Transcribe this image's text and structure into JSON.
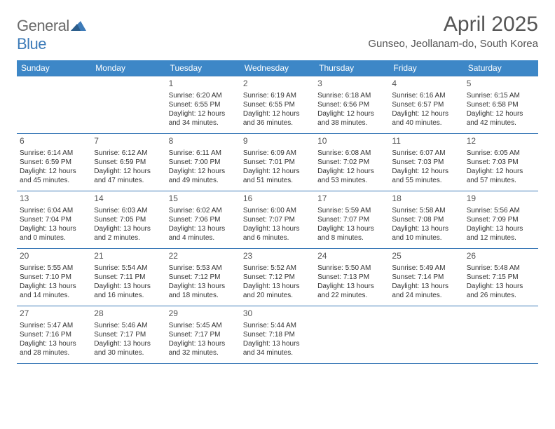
{
  "brand": {
    "part1": "General",
    "part2": "Blue"
  },
  "title": "April 2025",
  "location": "Gunseo, Jeollanam-do, South Korea",
  "colors": {
    "header_bg": "#3d87c7",
    "header_text": "#ffffff",
    "border": "#3d7bb8",
    "body_text": "#333333",
    "title_text": "#555555",
    "logo_gray": "#6b6b6b",
    "logo_blue": "#3d7bb8"
  },
  "typography": {
    "month_title_pt": 30,
    "location_pt": 15,
    "dayheader_pt": 12,
    "daynum_pt": 12,
    "cell_pt": 10
  },
  "day_headers": [
    "Sunday",
    "Monday",
    "Tuesday",
    "Wednesday",
    "Thursday",
    "Friday",
    "Saturday"
  ],
  "weeks": [
    [
      null,
      null,
      {
        "n": "1",
        "sr": "Sunrise: 6:20 AM",
        "ss": "Sunset: 6:55 PM",
        "d1": "Daylight: 12 hours",
        "d2": "and 34 minutes."
      },
      {
        "n": "2",
        "sr": "Sunrise: 6:19 AM",
        "ss": "Sunset: 6:55 PM",
        "d1": "Daylight: 12 hours",
        "d2": "and 36 minutes."
      },
      {
        "n": "3",
        "sr": "Sunrise: 6:18 AM",
        "ss": "Sunset: 6:56 PM",
        "d1": "Daylight: 12 hours",
        "d2": "and 38 minutes."
      },
      {
        "n": "4",
        "sr": "Sunrise: 6:16 AM",
        "ss": "Sunset: 6:57 PM",
        "d1": "Daylight: 12 hours",
        "d2": "and 40 minutes."
      },
      {
        "n": "5",
        "sr": "Sunrise: 6:15 AM",
        "ss": "Sunset: 6:58 PM",
        "d1": "Daylight: 12 hours",
        "d2": "and 42 minutes."
      }
    ],
    [
      {
        "n": "6",
        "sr": "Sunrise: 6:14 AM",
        "ss": "Sunset: 6:59 PM",
        "d1": "Daylight: 12 hours",
        "d2": "and 45 minutes."
      },
      {
        "n": "7",
        "sr": "Sunrise: 6:12 AM",
        "ss": "Sunset: 6:59 PM",
        "d1": "Daylight: 12 hours",
        "d2": "and 47 minutes."
      },
      {
        "n": "8",
        "sr": "Sunrise: 6:11 AM",
        "ss": "Sunset: 7:00 PM",
        "d1": "Daylight: 12 hours",
        "d2": "and 49 minutes."
      },
      {
        "n": "9",
        "sr": "Sunrise: 6:09 AM",
        "ss": "Sunset: 7:01 PM",
        "d1": "Daylight: 12 hours",
        "d2": "and 51 minutes."
      },
      {
        "n": "10",
        "sr": "Sunrise: 6:08 AM",
        "ss": "Sunset: 7:02 PM",
        "d1": "Daylight: 12 hours",
        "d2": "and 53 minutes."
      },
      {
        "n": "11",
        "sr": "Sunrise: 6:07 AM",
        "ss": "Sunset: 7:03 PM",
        "d1": "Daylight: 12 hours",
        "d2": "and 55 minutes."
      },
      {
        "n": "12",
        "sr": "Sunrise: 6:05 AM",
        "ss": "Sunset: 7:03 PM",
        "d1": "Daylight: 12 hours",
        "d2": "and 57 minutes."
      }
    ],
    [
      {
        "n": "13",
        "sr": "Sunrise: 6:04 AM",
        "ss": "Sunset: 7:04 PM",
        "d1": "Daylight: 13 hours",
        "d2": "and 0 minutes."
      },
      {
        "n": "14",
        "sr": "Sunrise: 6:03 AM",
        "ss": "Sunset: 7:05 PM",
        "d1": "Daylight: 13 hours",
        "d2": "and 2 minutes."
      },
      {
        "n": "15",
        "sr": "Sunrise: 6:02 AM",
        "ss": "Sunset: 7:06 PM",
        "d1": "Daylight: 13 hours",
        "d2": "and 4 minutes."
      },
      {
        "n": "16",
        "sr": "Sunrise: 6:00 AM",
        "ss": "Sunset: 7:07 PM",
        "d1": "Daylight: 13 hours",
        "d2": "and 6 minutes."
      },
      {
        "n": "17",
        "sr": "Sunrise: 5:59 AM",
        "ss": "Sunset: 7:07 PM",
        "d1": "Daylight: 13 hours",
        "d2": "and 8 minutes."
      },
      {
        "n": "18",
        "sr": "Sunrise: 5:58 AM",
        "ss": "Sunset: 7:08 PM",
        "d1": "Daylight: 13 hours",
        "d2": "and 10 minutes."
      },
      {
        "n": "19",
        "sr": "Sunrise: 5:56 AM",
        "ss": "Sunset: 7:09 PM",
        "d1": "Daylight: 13 hours",
        "d2": "and 12 minutes."
      }
    ],
    [
      {
        "n": "20",
        "sr": "Sunrise: 5:55 AM",
        "ss": "Sunset: 7:10 PM",
        "d1": "Daylight: 13 hours",
        "d2": "and 14 minutes."
      },
      {
        "n": "21",
        "sr": "Sunrise: 5:54 AM",
        "ss": "Sunset: 7:11 PM",
        "d1": "Daylight: 13 hours",
        "d2": "and 16 minutes."
      },
      {
        "n": "22",
        "sr": "Sunrise: 5:53 AM",
        "ss": "Sunset: 7:12 PM",
        "d1": "Daylight: 13 hours",
        "d2": "and 18 minutes."
      },
      {
        "n": "23",
        "sr": "Sunrise: 5:52 AM",
        "ss": "Sunset: 7:12 PM",
        "d1": "Daylight: 13 hours",
        "d2": "and 20 minutes."
      },
      {
        "n": "24",
        "sr": "Sunrise: 5:50 AM",
        "ss": "Sunset: 7:13 PM",
        "d1": "Daylight: 13 hours",
        "d2": "and 22 minutes."
      },
      {
        "n": "25",
        "sr": "Sunrise: 5:49 AM",
        "ss": "Sunset: 7:14 PM",
        "d1": "Daylight: 13 hours",
        "d2": "and 24 minutes."
      },
      {
        "n": "26",
        "sr": "Sunrise: 5:48 AM",
        "ss": "Sunset: 7:15 PM",
        "d1": "Daylight: 13 hours",
        "d2": "and 26 minutes."
      }
    ],
    [
      {
        "n": "27",
        "sr": "Sunrise: 5:47 AM",
        "ss": "Sunset: 7:16 PM",
        "d1": "Daylight: 13 hours",
        "d2": "and 28 minutes."
      },
      {
        "n": "28",
        "sr": "Sunrise: 5:46 AM",
        "ss": "Sunset: 7:17 PM",
        "d1": "Daylight: 13 hours",
        "d2": "and 30 minutes."
      },
      {
        "n": "29",
        "sr": "Sunrise: 5:45 AM",
        "ss": "Sunset: 7:17 PM",
        "d1": "Daylight: 13 hours",
        "d2": "and 32 minutes."
      },
      {
        "n": "30",
        "sr": "Sunrise: 5:44 AM",
        "ss": "Sunset: 7:18 PM",
        "d1": "Daylight: 13 hours",
        "d2": "and 34 minutes."
      },
      null,
      null,
      null
    ]
  ]
}
